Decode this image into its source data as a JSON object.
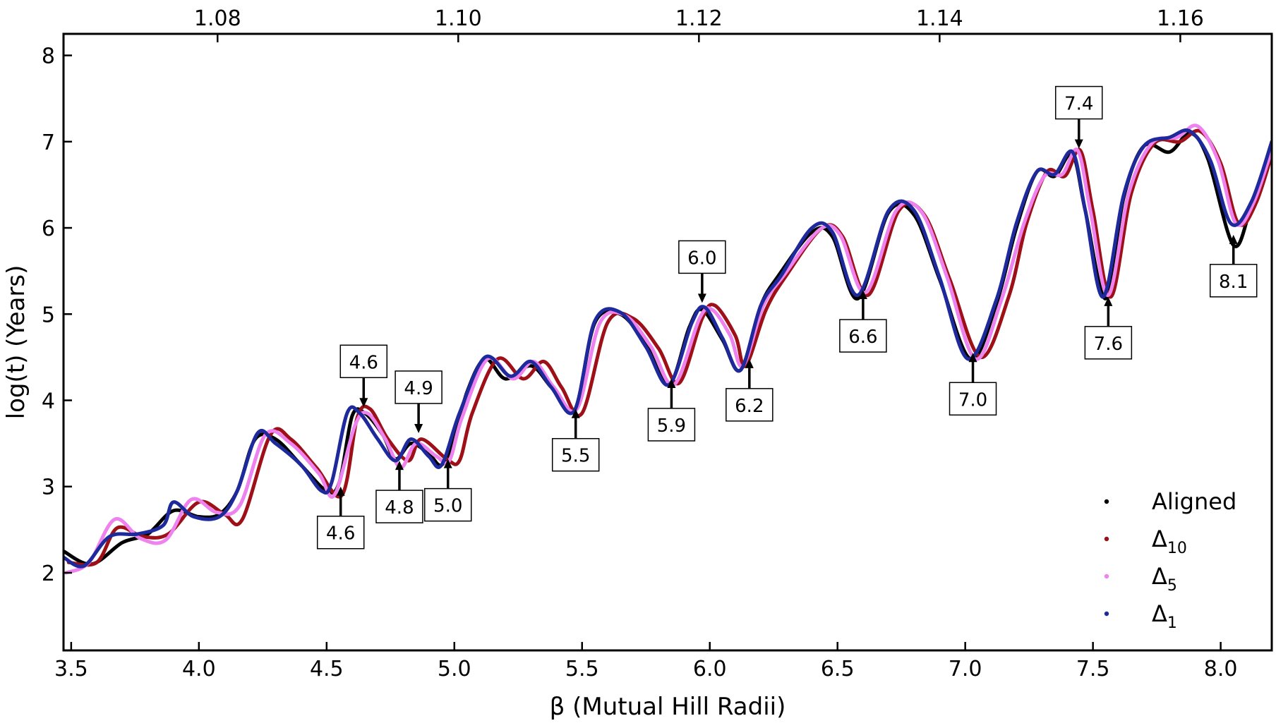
{
  "chart_data": {
    "type": "line",
    "xlabel": "β (Mutual Hill Radii)",
    "ylabel": "log(t) (Years)",
    "xlim": [
      3.47,
      8.2
    ],
    "ylim": [
      1.1,
      8.25
    ],
    "x_ticks": [
      3.5,
      4.0,
      4.5,
      5.0,
      5.5,
      6.0,
      6.5,
      7.0,
      7.5,
      8.0
    ],
    "x_tick_labels": [
      "3.5",
      "4.0",
      "4.5",
      "5.0",
      "5.5",
      "6.0",
      "6.5",
      "7.0",
      "7.5",
      "8.0"
    ],
    "y_ticks": [
      2,
      3,
      4,
      5,
      6,
      7,
      8
    ],
    "y_tick_labels": [
      "2",
      "3",
      "4",
      "5",
      "6",
      "7",
      "8"
    ],
    "top_axis": {
      "ticks": [
        1.08,
        1.1,
        1.12,
        1.14,
        1.16
      ],
      "tick_labels": [
        "1.08",
        "1.10",
        "1.12",
        "1.14",
        "1.16"
      ],
      "relation_x": [
        3.47,
        8.2
      ],
      "relation_top": [
        1.0672,
        1.1676
      ]
    },
    "legend": {
      "position": "lower right",
      "entries": [
        {
          "label": "Aligned",
          "sub": "",
          "color": "#000000"
        },
        {
          "label": "Δ",
          "sub": "10",
          "color": "#9e1018"
        },
        {
          "label": "Δ",
          "sub": "5",
          "color": "#ee82ee"
        },
        {
          "label": "Δ",
          "sub": "1",
          "color": "#1e2a9c"
        }
      ]
    },
    "series": [
      {
        "name": "Aligned",
        "color": "#000000",
        "shift": 0.0,
        "dy": 0.0,
        "points": [
          [
            3.47,
            2.25
          ],
          [
            3.58,
            2.1
          ],
          [
            3.7,
            2.35
          ],
          [
            3.8,
            2.45
          ],
          [
            3.9,
            2.72
          ],
          [
            4.0,
            2.65
          ],
          [
            4.08,
            2.68
          ],
          [
            4.15,
            2.95
          ],
          [
            4.22,
            3.55
          ],
          [
            4.3,
            3.55
          ],
          [
            4.4,
            3.25
          ],
          [
            4.5,
            2.95
          ],
          [
            4.55,
            3.05
          ],
          [
            4.6,
            3.82
          ],
          [
            4.65,
            3.85
          ],
          [
            4.72,
            3.6
          ],
          [
            4.77,
            3.32
          ],
          [
            4.83,
            3.5
          ],
          [
            4.9,
            3.38
          ],
          [
            4.95,
            3.25
          ],
          [
            5.0,
            3.55
          ],
          [
            5.05,
            4.1
          ],
          [
            5.12,
            4.48
          ],
          [
            5.2,
            4.25
          ],
          [
            5.3,
            4.4
          ],
          [
            5.38,
            4.15
          ],
          [
            5.47,
            3.88
          ],
          [
            5.55,
            4.9
          ],
          [
            5.65,
            5.0
          ],
          [
            5.75,
            4.65
          ],
          [
            5.84,
            4.18
          ],
          [
            5.92,
            4.85
          ],
          [
            5.97,
            5.05
          ],
          [
            6.05,
            4.7
          ],
          [
            6.12,
            4.35
          ],
          [
            6.2,
            5.1
          ],
          [
            6.27,
            5.45
          ],
          [
            6.4,
            5.95
          ],
          [
            6.48,
            5.9
          ],
          [
            6.58,
            5.18
          ],
          [
            6.7,
            6.18
          ],
          [
            6.8,
            6.15
          ],
          [
            6.9,
            5.4
          ],
          [
            7.02,
            4.48
          ],
          [
            7.12,
            5.1
          ],
          [
            7.2,
            6.0
          ],
          [
            7.28,
            6.65
          ],
          [
            7.35,
            6.6
          ],
          [
            7.42,
            6.85
          ],
          [
            7.47,
            6.2
          ],
          [
            7.55,
            5.18
          ],
          [
            7.62,
            6.35
          ],
          [
            7.7,
            6.95
          ],
          [
            7.8,
            6.88
          ],
          [
            7.88,
            7.1
          ],
          [
            7.95,
            6.8
          ],
          [
            8.05,
            5.8
          ],
          [
            8.12,
            6.25
          ],
          [
            8.2,
            6.95
          ]
        ]
      },
      {
        "name": "Δ10",
        "color": "#9e1018",
        "shift": 0.02,
        "dy": 0.0,
        "points": [
          [
            3.47,
            2.12
          ],
          [
            3.58,
            2.12
          ],
          [
            3.66,
            2.52
          ],
          [
            3.76,
            2.42
          ],
          [
            3.86,
            2.45
          ],
          [
            3.98,
            2.82
          ],
          [
            4.08,
            2.68
          ],
          [
            4.15,
            2.62
          ],
          [
            4.26,
            3.6
          ],
          [
            4.34,
            3.55
          ],
          [
            4.44,
            3.22
          ],
          [
            4.54,
            2.9
          ],
          [
            4.6,
            3.8
          ],
          [
            4.65,
            3.9
          ],
          [
            4.72,
            3.55
          ],
          [
            4.8,
            3.3
          ],
          [
            4.85,
            3.55
          ],
          [
            4.95,
            3.32
          ],
          [
            5.0,
            3.3
          ],
          [
            5.05,
            3.85
          ],
          [
            5.15,
            4.48
          ],
          [
            5.25,
            4.25
          ],
          [
            5.33,
            4.45
          ],
          [
            5.4,
            4.15
          ],
          [
            5.48,
            3.85
          ],
          [
            5.58,
            4.9
          ],
          [
            5.68,
            4.95
          ],
          [
            5.78,
            4.6
          ],
          [
            5.86,
            4.2
          ],
          [
            5.95,
            4.95
          ],
          [
            6.0,
            5.1
          ],
          [
            6.08,
            4.75
          ],
          [
            6.12,
            4.4
          ],
          [
            6.2,
            5.05
          ],
          [
            6.28,
            5.45
          ],
          [
            6.42,
            6.0
          ],
          [
            6.5,
            5.9
          ],
          [
            6.6,
            5.22
          ],
          [
            6.72,
            6.2
          ],
          [
            6.82,
            6.15
          ],
          [
            6.92,
            5.4
          ],
          [
            7.04,
            4.5
          ],
          [
            7.15,
            5.2
          ],
          [
            7.22,
            6.05
          ],
          [
            7.3,
            6.65
          ],
          [
            7.37,
            6.6
          ],
          [
            7.43,
            6.9
          ],
          [
            7.48,
            6.2
          ],
          [
            7.55,
            5.2
          ],
          [
            7.63,
            6.4
          ],
          [
            7.72,
            6.98
          ],
          [
            7.82,
            7.0
          ],
          [
            7.9,
            7.12
          ],
          [
            7.98,
            6.75
          ],
          [
            8.05,
            6.05
          ],
          [
            8.12,
            6.3
          ],
          [
            8.2,
            7.05
          ]
        ]
      },
      {
        "name": "Δ5",
        "color": "#ee82ee",
        "shift": 0.01,
        "dy": 0.0,
        "points": [
          [
            3.47,
            2.0
          ],
          [
            3.56,
            2.12
          ],
          [
            3.66,
            2.62
          ],
          [
            3.76,
            2.4
          ],
          [
            3.86,
            2.38
          ],
          [
            3.96,
            2.85
          ],
          [
            4.06,
            2.7
          ],
          [
            4.15,
            2.78
          ],
          [
            4.25,
            3.6
          ],
          [
            4.35,
            3.5
          ],
          [
            4.46,
            3.15
          ],
          [
            4.52,
            2.9
          ],
          [
            4.6,
            3.7
          ],
          [
            4.65,
            3.85
          ],
          [
            4.72,
            3.55
          ],
          [
            4.78,
            3.22
          ],
          [
            4.84,
            3.5
          ],
          [
            4.92,
            3.35
          ],
          [
            4.97,
            3.3
          ],
          [
            5.02,
            3.8
          ],
          [
            5.12,
            4.48
          ],
          [
            5.22,
            4.25
          ],
          [
            5.3,
            4.45
          ],
          [
            5.38,
            4.15
          ],
          [
            5.47,
            3.9
          ],
          [
            5.56,
            4.9
          ],
          [
            5.66,
            4.98
          ],
          [
            5.76,
            4.62
          ],
          [
            5.85,
            4.18
          ],
          [
            5.95,
            4.95
          ],
          [
            6.0,
            5.05
          ],
          [
            6.07,
            4.75
          ],
          [
            6.12,
            4.4
          ],
          [
            6.2,
            5.1
          ],
          [
            6.28,
            5.45
          ],
          [
            6.42,
            5.98
          ],
          [
            6.5,
            5.92
          ],
          [
            6.6,
            5.25
          ],
          [
            6.72,
            6.2
          ],
          [
            6.82,
            6.18
          ],
          [
            6.92,
            5.42
          ],
          [
            7.03,
            4.48
          ],
          [
            7.13,
            5.15
          ],
          [
            7.22,
            6.05
          ],
          [
            7.3,
            6.6
          ],
          [
            7.37,
            6.62
          ],
          [
            7.43,
            6.9
          ],
          [
            7.48,
            6.2
          ],
          [
            7.55,
            5.22
          ],
          [
            7.63,
            6.4
          ],
          [
            7.72,
            6.98
          ],
          [
            7.82,
            7.05
          ],
          [
            7.9,
            7.18
          ],
          [
            7.98,
            6.78
          ],
          [
            8.05,
            6.05
          ],
          [
            8.12,
            6.3
          ],
          [
            8.2,
            7.0
          ]
        ]
      },
      {
        "name": "Δ1",
        "color": "#1e2a9c",
        "shift": 0.0,
        "dy": 0.0,
        "points": [
          [
            3.47,
            2.18
          ],
          [
            3.55,
            2.08
          ],
          [
            3.65,
            2.42
          ],
          [
            3.76,
            2.45
          ],
          [
            3.86,
            2.55
          ],
          [
            3.9,
            2.82
          ],
          [
            3.98,
            2.65
          ],
          [
            4.08,
            2.65
          ],
          [
            4.15,
            2.95
          ],
          [
            4.23,
            3.62
          ],
          [
            4.3,
            3.5
          ],
          [
            4.4,
            3.25
          ],
          [
            4.48,
            2.95
          ],
          [
            4.52,
            3.05
          ],
          [
            4.58,
            3.85
          ],
          [
            4.63,
            3.85
          ],
          [
            4.7,
            3.55
          ],
          [
            4.77,
            3.3
          ],
          [
            4.83,
            3.55
          ],
          [
            4.9,
            3.35
          ],
          [
            4.95,
            3.25
          ],
          [
            5.02,
            3.85
          ],
          [
            5.12,
            4.5
          ],
          [
            5.22,
            4.28
          ],
          [
            5.3,
            4.45
          ],
          [
            5.38,
            4.15
          ],
          [
            5.47,
            3.88
          ],
          [
            5.55,
            4.92
          ],
          [
            5.65,
            5.02
          ],
          [
            5.75,
            4.62
          ],
          [
            5.84,
            4.18
          ],
          [
            5.93,
            4.9
          ],
          [
            5.98,
            5.08
          ],
          [
            6.05,
            4.72
          ],
          [
            6.12,
            4.35
          ],
          [
            6.2,
            5.1
          ],
          [
            6.28,
            5.45
          ],
          [
            6.4,
            6.0
          ],
          [
            6.48,
            5.95
          ],
          [
            6.58,
            5.22
          ],
          [
            6.7,
            6.2
          ],
          [
            6.8,
            6.2
          ],
          [
            6.9,
            5.42
          ],
          [
            7.01,
            4.48
          ],
          [
            7.12,
            5.15
          ],
          [
            7.2,
            6.05
          ],
          [
            7.28,
            6.65
          ],
          [
            7.35,
            6.62
          ],
          [
            7.42,
            6.88
          ],
          [
            7.47,
            6.2
          ],
          [
            7.54,
            5.2
          ],
          [
            7.62,
            6.38
          ],
          [
            7.7,
            6.95
          ],
          [
            7.8,
            7.05
          ],
          [
            7.88,
            7.12
          ],
          [
            7.96,
            6.78
          ],
          [
            8.04,
            6.05
          ],
          [
            8.12,
            6.3
          ],
          [
            8.2,
            7.0
          ]
        ]
      }
    ],
    "annotations": [
      {
        "label": "4.6",
        "x": 4.555,
        "y": 3.0,
        "dir": "up"
      },
      {
        "label": "4.6",
        "x": 4.645,
        "y": 3.92,
        "dir": "down"
      },
      {
        "label": "4.8",
        "x": 4.785,
        "y": 3.3,
        "dir": "up"
      },
      {
        "label": "4.9",
        "x": 4.86,
        "y": 3.62,
        "dir": "down"
      },
      {
        "label": "5.0",
        "x": 4.975,
        "y": 3.32,
        "dir": "up"
      },
      {
        "label": "5.5",
        "x": 5.475,
        "y": 3.9,
        "dir": "up"
      },
      {
        "label": "5.9",
        "x": 5.85,
        "y": 4.25,
        "dir": "up"
      },
      {
        "label": "6.0",
        "x": 5.97,
        "y": 5.13,
        "dir": "down"
      },
      {
        "label": "6.2",
        "x": 6.155,
        "y": 4.48,
        "dir": "up"
      },
      {
        "label": "6.6",
        "x": 6.6,
        "y": 5.28,
        "dir": "up"
      },
      {
        "label": "7.0",
        "x": 7.03,
        "y": 4.55,
        "dir": "up"
      },
      {
        "label": "7.4",
        "x": 7.445,
        "y": 6.92,
        "dir": "down"
      },
      {
        "label": "7.6",
        "x": 7.56,
        "y": 5.2,
        "dir": "up"
      },
      {
        "label": "8.1",
        "x": 8.05,
        "y": 5.92,
        "dir": "up"
      }
    ]
  }
}
